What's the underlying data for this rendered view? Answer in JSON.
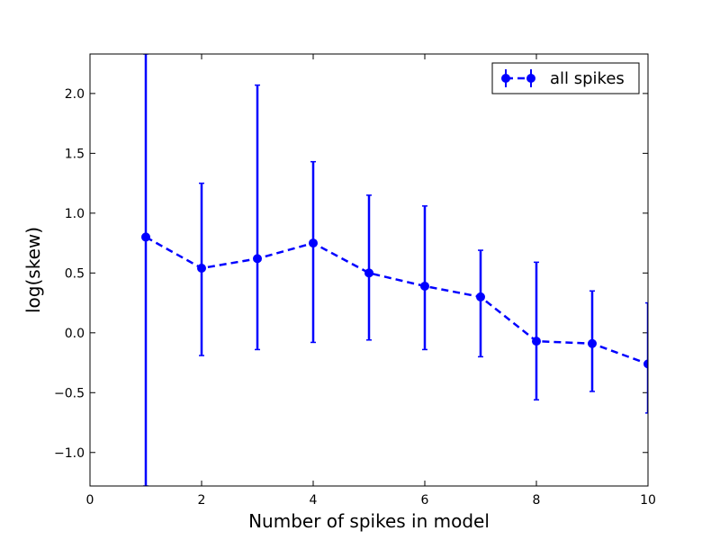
{
  "chart_data": {
    "type": "line",
    "title": "",
    "xlabel": "Number of spikes in model",
    "ylabel": "log(skew)",
    "xlim": [
      0,
      10
    ],
    "ylim": [
      -1.28,
      2.33
    ],
    "xticks": [
      0,
      2,
      4,
      6,
      8,
      10
    ],
    "xtick_labels": [
      "0",
      "2",
      "4",
      "6",
      "8",
      "10"
    ],
    "yticks": [
      -1.0,
      -0.5,
      0.0,
      0.5,
      1.0,
      1.5,
      2.0
    ],
    "ytick_labels": [
      "−1.0",
      "−0.5",
      "0.0",
      "0.5",
      "1.0",
      "1.5",
      "2.0"
    ],
    "grid": false,
    "legend_position": "top-right",
    "color": "#0000ff",
    "series": [
      {
        "name": "all spikes",
        "x": [
          1,
          2,
          3,
          4,
          5,
          6,
          7,
          8,
          9,
          10
        ],
        "y": [
          0.8,
          0.54,
          0.62,
          0.75,
          0.5,
          0.39,
          0.3,
          -0.07,
          -0.09,
          -0.26
        ],
        "error_lower": [
          -1.28,
          -0.19,
          -0.14,
          -0.08,
          -0.06,
          -0.14,
          -0.2,
          -0.56,
          -0.49,
          -0.67
        ],
        "error_upper": [
          2.33,
          1.25,
          2.07,
          1.43,
          1.15,
          1.06,
          0.69,
          0.59,
          0.35,
          0.25
        ]
      }
    ]
  }
}
